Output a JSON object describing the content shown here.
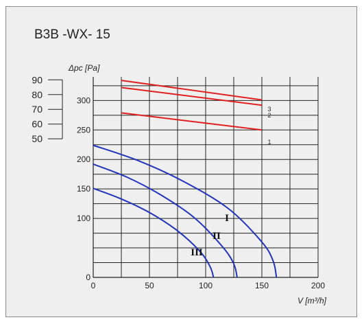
{
  "title": "B3B -WX- 15",
  "chart_data": {
    "type": "line",
    "xlabel": "V [m³/h]",
    "ylabel": "Δpc [Pa]",
    "xlim": [
      0,
      200
    ],
    "ylim": [
      0,
      340
    ],
    "x_ticks": [
      0,
      50,
      100,
      150,
      200
    ],
    "y_ticks": [
      0,
      100,
      150,
      200,
      250,
      300
    ],
    "grid": true,
    "secondary_scale": {
      "tick_labels": [
        "90",
        "80",
        "70",
        "60",
        "50"
      ],
      "pa_values": [
        335,
        310,
        285,
        260,
        235
      ]
    },
    "series": [
      {
        "name": "1",
        "color": "#e02020",
        "kind": "level",
        "x": [
          25,
          150
        ],
        "y": [
          279,
          250
        ]
      },
      {
        "name": "2",
        "color": "#e02020",
        "kind": "level",
        "x": [
          25,
          150
        ],
        "y": [
          322,
          292
        ]
      },
      {
        "name": "3",
        "color": "#e02020",
        "kind": "level",
        "x": [
          25,
          150
        ],
        "y": [
          334,
          301
        ]
      },
      {
        "name": "I",
        "color": "#2233bb",
        "kind": "fan",
        "x": [
          0,
          40,
          80,
          120,
          150,
          160,
          163
        ],
        "y": [
          224,
          198,
          163,
          117,
          60,
          28,
          0
        ]
      },
      {
        "name": "II",
        "color": "#2233bb",
        "kind": "fan",
        "x": [
          0,
          30,
          60,
          90,
          115,
          125,
          128
        ],
        "y": [
          192,
          170,
          140,
          101,
          52,
          23,
          0
        ]
      },
      {
        "name": "III",
        "color": "#2233bb",
        "kind": "fan",
        "x": [
          0,
          25,
          50,
          75,
          95,
          104,
          107
        ],
        "y": [
          151,
          133,
          110,
          79,
          44,
          18,
          0
        ]
      }
    ]
  }
}
